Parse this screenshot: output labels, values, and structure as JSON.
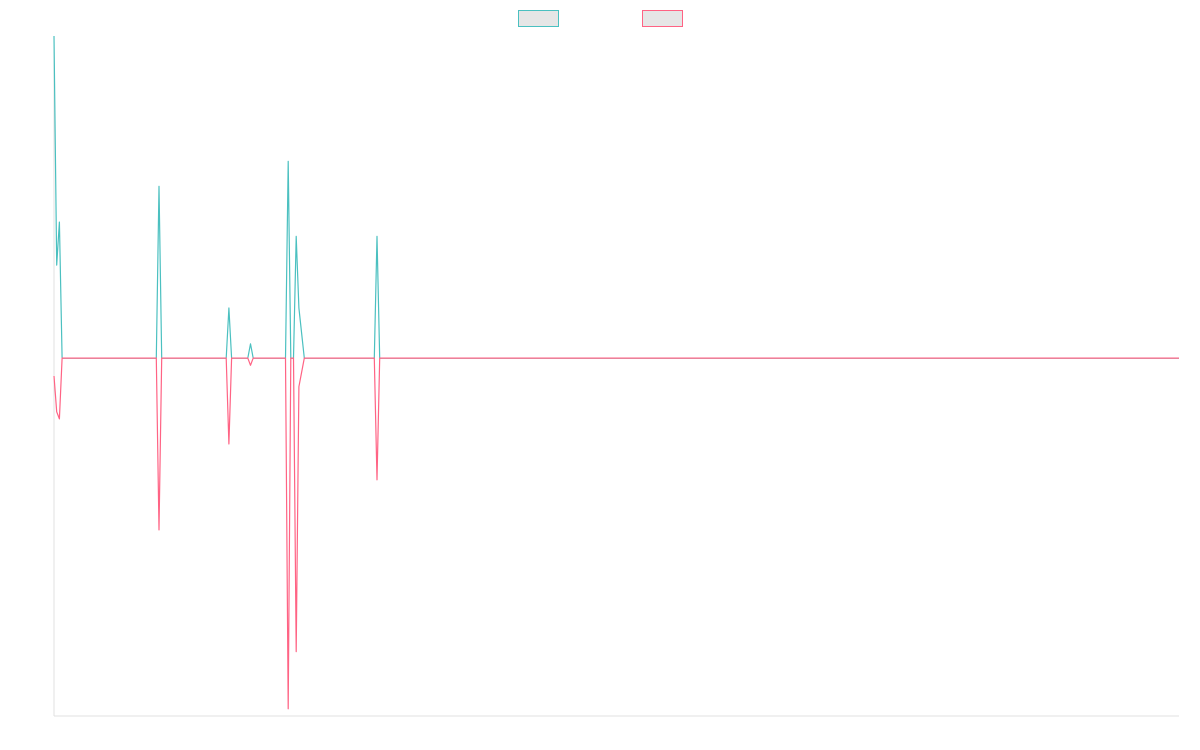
{
  "chart_data": {
    "type": "line",
    "title": "",
    "xlabel": "",
    "ylabel": "",
    "x_range": [
      0,
      418
    ],
    "ylim": [
      -100,
      90
    ],
    "grid": false,
    "legend_placement": "top-center",
    "series": [
      {
        "color": "#4bc0c0",
        "fill": "#e6e6e6",
        "points": [
          [
            0,
            90
          ],
          [
            1,
            26
          ],
          [
            2,
            38
          ],
          [
            3,
            0
          ],
          [
            38,
            0
          ],
          [
            39,
            48
          ],
          [
            40,
            0
          ],
          [
            64,
            0
          ],
          [
            65,
            14
          ],
          [
            66,
            0
          ],
          [
            72,
            0
          ],
          [
            73,
            4
          ],
          [
            74,
            0
          ],
          [
            86,
            0
          ],
          [
            87,
            55
          ],
          [
            88,
            0
          ],
          [
            89,
            0
          ],
          [
            90,
            34
          ],
          [
            91,
            14
          ],
          [
            93,
            0
          ],
          [
            119,
            0
          ],
          [
            120,
            34
          ],
          [
            121,
            0
          ],
          [
            418,
            0
          ]
        ]
      },
      {
        "color": "#ff6384",
        "fill": "#e6e6e6",
        "points": [
          [
            0,
            -5
          ],
          [
            1,
            -15
          ],
          [
            2,
            -17
          ],
          [
            3,
            0
          ],
          [
            38,
            0
          ],
          [
            39,
            -48
          ],
          [
            40,
            0
          ],
          [
            64,
            0
          ],
          [
            65,
            -24
          ],
          [
            66,
            0
          ],
          [
            72,
            0
          ],
          [
            73,
            -2
          ],
          [
            74,
            0
          ],
          [
            86,
            0
          ],
          [
            87,
            -98
          ],
          [
            88,
            0
          ],
          [
            89,
            0
          ],
          [
            90,
            -82
          ],
          [
            91,
            -8
          ],
          [
            93,
            0
          ],
          [
            119,
            0
          ],
          [
            120,
            -34
          ],
          [
            121,
            0
          ],
          [
            418,
            0
          ]
        ]
      }
    ]
  }
}
